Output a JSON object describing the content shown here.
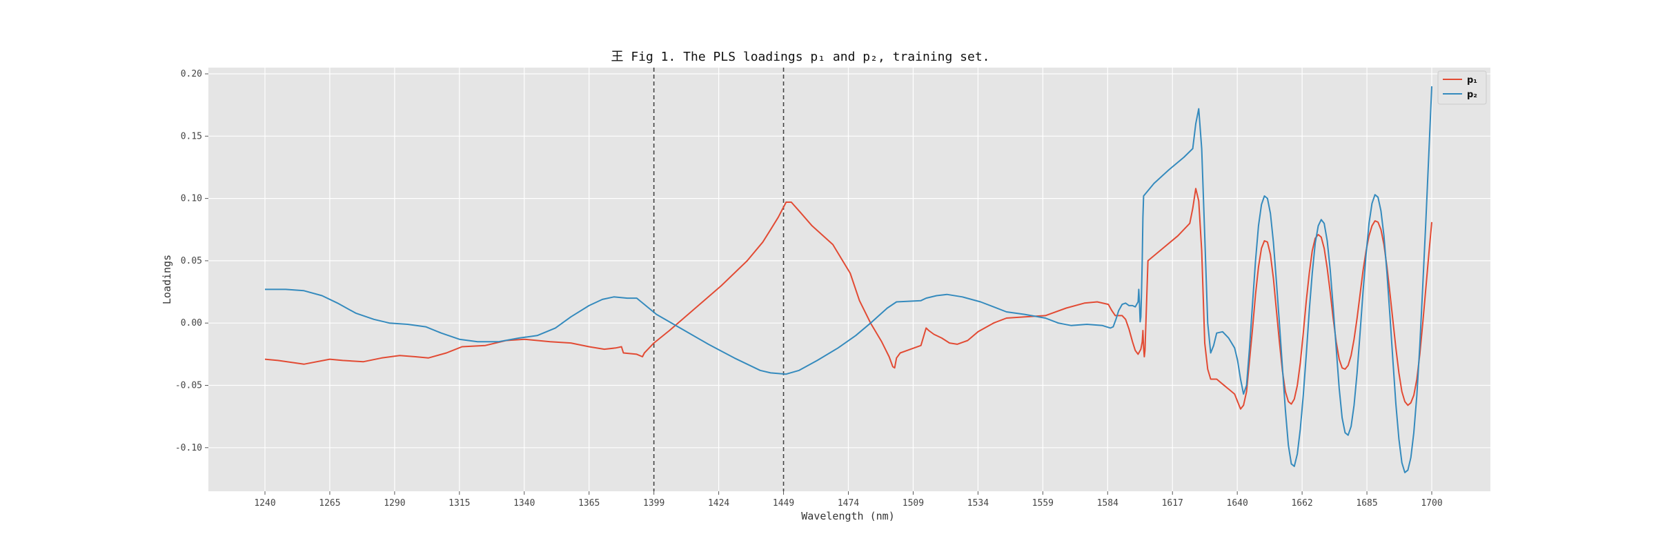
{
  "chart_data": {
    "type": "line",
    "title": "王 Fig 1. The PLS loadings p₁ and p₂, training set.",
    "xlabel": "Wavelength (nm)",
    "ylabel": "Loadings",
    "xlim": [
      1217,
      1719
    ],
    "ylim": [
      -0.135,
      0.205
    ],
    "grid": true,
    "legend_position": "top-right",
    "xticks": [
      1240,
      1265,
      1290,
      1315,
      1340,
      1365,
      1399,
      1424,
      1449,
      1474,
      1509,
      1534,
      1559,
      1584,
      1617,
      1640,
      1662,
      1685,
      1700
    ],
    "yticks": [
      -0.1,
      -0.05,
      0.0,
      0.05,
      0.1,
      0.15,
      0.2
    ],
    "ytick_labels": [
      "-0.10",
      "-0.05",
      "0.00",
      "0.05",
      "0.10",
      "0.15",
      "0.20"
    ],
    "vlines": [
      1399,
      1449
    ],
    "series": [
      {
        "name": "p₁",
        "color": "#e24a33",
        "points": [
          [
            1240,
            -0.029
          ],
          [
            1245,
            -0.03
          ],
          [
            1255,
            -0.033
          ],
          [
            1265,
            -0.029
          ],
          [
            1270,
            -0.03
          ],
          [
            1278,
            -0.031
          ],
          [
            1285,
            -0.028
          ],
          [
            1292,
            -0.026
          ],
          [
            1298,
            -0.027
          ],
          [
            1303,
            -0.028
          ],
          [
            1310,
            -0.024
          ],
          [
            1316,
            -0.019
          ],
          [
            1325,
            -0.018
          ],
          [
            1333,
            -0.014
          ],
          [
            1340,
            -0.013
          ],
          [
            1350,
            -0.015
          ],
          [
            1358,
            -0.016
          ],
          [
            1365,
            -0.019
          ],
          [
            1373,
            -0.021
          ],
          [
            1379,
            -0.02
          ],
          [
            1382,
            -0.019
          ],
          [
            1383,
            -0.024
          ],
          [
            1390,
            -0.025
          ],
          [
            1393,
            -0.027
          ],
          [
            1394,
            -0.024
          ],
          [
            1399,
            -0.016
          ],
          [
            1405,
            -0.006
          ],
          [
            1415,
            0.012
          ],
          [
            1425,
            0.03
          ],
          [
            1435,
            0.05
          ],
          [
            1441,
            0.065
          ],
          [
            1444,
            0.075
          ],
          [
            1447,
            0.085
          ],
          [
            1450,
            0.097
          ],
          [
            1452,
            0.097
          ],
          [
            1455,
            0.09
          ],
          [
            1460,
            0.078
          ],
          [
            1468,
            0.063
          ],
          [
            1475,
            0.04
          ],
          [
            1480,
            0.018
          ],
          [
            1486,
            0.0
          ],
          [
            1492,
            -0.015
          ],
          [
            1496,
            -0.027
          ],
          [
            1498,
            -0.035
          ],
          [
            1499,
            -0.036
          ],
          [
            1500,
            -0.028
          ],
          [
            1502,
            -0.024
          ],
          [
            1512,
            -0.018
          ],
          [
            1514,
            -0.004
          ],
          [
            1515,
            -0.006
          ],
          [
            1517,
            -0.009
          ],
          [
            1520,
            -0.012
          ],
          [
            1523,
            -0.016
          ],
          [
            1526,
            -0.017
          ],
          [
            1530,
            -0.014
          ],
          [
            1534,
            -0.007
          ],
          [
            1540,
            0.0
          ],
          [
            1545,
            0.004
          ],
          [
            1552,
            0.005
          ],
          [
            1560,
            0.006
          ],
          [
            1568,
            0.012
          ],
          [
            1575,
            0.016
          ],
          [
            1580,
            0.017
          ],
          [
            1585,
            0.015
          ],
          [
            1590,
            0.01
          ],
          [
            1595,
            0.006
          ],
          [
            1605,
            0.006
          ],
          [
            1610,
            0.003
          ],
          [
            1615,
            -0.005
          ],
          [
            1620,
            -0.015
          ],
          [
            1624,
            -0.022
          ],
          [
            1628,
            -0.025
          ],
          [
            1632,
            -0.021
          ],
          [
            1634,
            -0.015
          ],
          [
            1635,
            -0.006
          ],
          [
            1636,
            -0.02
          ],
          [
            1637,
            -0.027
          ],
          [
            1638,
            -0.022
          ],
          [
            1639,
            0.05
          ],
          [
            1644,
            0.06
          ],
          [
            1649,
            0.07
          ],
          [
            1653,
            0.08
          ],
          [
            1654,
            0.092
          ],
          [
            1655,
            0.108
          ],
          [
            1656,
            0.098
          ],
          [
            1657,
            0.058
          ],
          [
            1658,
            -0.016
          ],
          [
            1659,
            -0.037
          ],
          [
            1660,
            -0.045
          ],
          [
            1662,
            -0.045
          ],
          [
            1664,
            -0.049
          ],
          [
            1666,
            -0.053
          ],
          [
            1668,
            -0.057
          ],
          [
            1669,
            -0.063
          ],
          [
            1670,
            -0.069
          ],
          [
            1671,
            -0.066
          ],
          [
            1672,
            -0.055
          ],
          [
            1673,
            -0.03
          ],
          [
            1674,
            -0.005
          ],
          [
            1675,
            0.023
          ],
          [
            1676,
            0.045
          ],
          [
            1677,
            0.06
          ],
          [
            1678,
            0.066
          ],
          [
            1679,
            0.065
          ],
          [
            1680,
            0.055
          ],
          [
            1681,
            0.036
          ],
          [
            1682,
            0.01
          ],
          [
            1683,
            -0.015
          ],
          [
            1684,
            -0.038
          ],
          [
            1685,
            -0.055
          ],
          [
            1686,
            -0.063
          ],
          [
            1687,
            -0.065
          ],
          [
            1688,
            -0.061
          ],
          [
            1689,
            -0.05
          ],
          [
            1690,
            -0.032
          ],
          [
            1691,
            -0.008
          ],
          [
            1692,
            0.018
          ],
          [
            1693,
            0.04
          ],
          [
            1694,
            0.058
          ],
          [
            1695,
            0.068
          ],
          [
            1696,
            0.071
          ],
          [
            1697,
            0.069
          ],
          [
            1698,
            0.06
          ],
          [
            1699,
            0.044
          ],
          [
            1700,
            0.025
          ],
          [
            1701,
            0.004
          ],
          [
            1702,
            -0.015
          ],
          [
            1703,
            -0.029
          ],
          [
            1704,
            -0.036
          ],
          [
            1705,
            -0.037
          ],
          [
            1706,
            -0.034
          ],
          [
            1707,
            -0.026
          ],
          [
            1708,
            -0.013
          ],
          [
            1709,
            0.004
          ],
          [
            1710,
            0.023
          ],
          [
            1711,
            0.042
          ],
          [
            1712,
            0.058
          ],
          [
            1713,
            0.07
          ],
          [
            1714,
            0.078
          ],
          [
            1715,
            0.082
          ],
          [
            1716,
            0.081
          ],
          [
            1717,
            0.075
          ],
          [
            1718,
            0.063
          ],
          [
            1719,
            0.045
          ],
          [
            1720,
            0.024
          ],
          [
            1721,
            0.002
          ],
          [
            1722,
            -0.02
          ],
          [
            1723,
            -0.04
          ],
          [
            1724,
            -0.055
          ],
          [
            1725,
            -0.063
          ],
          [
            1726,
            -0.066
          ],
          [
            1727,
            -0.064
          ],
          [
            1728,
            -0.058
          ],
          [
            1729,
            -0.045
          ],
          [
            1730,
            -0.025
          ],
          [
            1731,
            0.0
          ],
          [
            1732,
            0.027
          ],
          [
            1733,
            0.055
          ],
          [
            1734,
            0.081
          ]
        ]
      },
      {
        "name": "p₂",
        "color": "#348abd",
        "points": [
          [
            1240,
            0.027
          ],
          [
            1248,
            0.027
          ],
          [
            1255,
            0.026
          ],
          [
            1262,
            0.022
          ],
          [
            1268,
            0.016
          ],
          [
            1275,
            0.008
          ],
          [
            1282,
            0.003
          ],
          [
            1288,
            0.0
          ],
          [
            1295,
            -0.001
          ],
          [
            1302,
            -0.003
          ],
          [
            1308,
            -0.008
          ],
          [
            1315,
            -0.013
          ],
          [
            1322,
            -0.015
          ],
          [
            1330,
            -0.015
          ],
          [
            1338,
            -0.012
          ],
          [
            1345,
            -0.01
          ],
          [
            1352,
            -0.004
          ],
          [
            1358,
            0.005
          ],
          [
            1365,
            0.014
          ],
          [
            1372,
            0.019
          ],
          [
            1378,
            0.021
          ],
          [
            1385,
            0.02
          ],
          [
            1390,
            0.02
          ],
          [
            1400,
            0.007
          ],
          [
            1410,
            -0.005
          ],
          [
            1420,
            -0.017
          ],
          [
            1430,
            -0.028
          ],
          [
            1440,
            -0.038
          ],
          [
            1444,
            -0.04
          ],
          [
            1450,
            -0.041
          ],
          [
            1455,
            -0.038
          ],
          [
            1462,
            -0.03
          ],
          [
            1470,
            -0.02
          ],
          [
            1478,
            -0.01
          ],
          [
            1486,
            0.0
          ],
          [
            1495,
            0.012
          ],
          [
            1500,
            0.017
          ],
          [
            1512,
            0.018
          ],
          [
            1514,
            0.02
          ],
          [
            1518,
            0.022
          ],
          [
            1522,
            0.023
          ],
          [
            1528,
            0.021
          ],
          [
            1535,
            0.017
          ],
          [
            1540,
            0.013
          ],
          [
            1545,
            0.009
          ],
          [
            1552,
            0.007
          ],
          [
            1560,
            0.004
          ],
          [
            1565,
            0.0
          ],
          [
            1570,
            -0.002
          ],
          [
            1576,
            -0.001
          ],
          [
            1582,
            -0.002
          ],
          [
            1588,
            -0.004
          ],
          [
            1592,
            -0.003
          ],
          [
            1596,
            0.003
          ],
          [
            1600,
            0.01
          ],
          [
            1605,
            0.015
          ],
          [
            1610,
            0.016
          ],
          [
            1615,
            0.014
          ],
          [
            1620,
            0.014
          ],
          [
            1624,
            0.013
          ],
          [
            1628,
            0.017
          ],
          [
            1629,
            0.027
          ],
          [
            1630,
            0.016
          ],
          [
            1631,
            0.001
          ],
          [
            1632,
            0.005
          ],
          [
            1633,
            0.025
          ],
          [
            1634,
            0.05
          ],
          [
            1635,
            0.085
          ],
          [
            1636,
            0.102
          ],
          [
            1641,
            0.112
          ],
          [
            1646,
            0.123
          ],
          [
            1651,
            0.133
          ],
          [
            1654,
            0.14
          ],
          [
            1655,
            0.16
          ],
          [
            1656,
            0.172
          ],
          [
            1657,
            0.14
          ],
          [
            1658,
            0.07
          ],
          [
            1659,
            0.0
          ],
          [
            1660,
            -0.024
          ],
          [
            1661,
            -0.018
          ],
          [
            1662,
            -0.008
          ],
          [
            1664,
            -0.007
          ],
          [
            1666,
            -0.012
          ],
          [
            1668,
            -0.02
          ],
          [
            1669,
            -0.03
          ],
          [
            1670,
            -0.045
          ],
          [
            1671,
            -0.057
          ],
          [
            1672,
            -0.05
          ],
          [
            1673,
            -0.02
          ],
          [
            1674,
            0.015
          ],
          [
            1675,
            0.05
          ],
          [
            1676,
            0.078
          ],
          [
            1677,
            0.095
          ],
          [
            1678,
            0.102
          ],
          [
            1679,
            0.1
          ],
          [
            1680,
            0.088
          ],
          [
            1681,
            0.065
          ],
          [
            1682,
            0.033
          ],
          [
            1683,
            0.0
          ],
          [
            1684,
            -0.035
          ],
          [
            1685,
            -0.07
          ],
          [
            1686,
            -0.098
          ],
          [
            1687,
            -0.113
          ],
          [
            1688,
            -0.115
          ],
          [
            1689,
            -0.105
          ],
          [
            1690,
            -0.085
          ],
          [
            1691,
            -0.058
          ],
          [
            1692,
            -0.025
          ],
          [
            1693,
            0.01
          ],
          [
            1694,
            0.04
          ],
          [
            1695,
            0.064
          ],
          [
            1696,
            0.078
          ],
          [
            1697,
            0.083
          ],
          [
            1698,
            0.08
          ],
          [
            1699,
            0.066
          ],
          [
            1700,
            0.043
          ],
          [
            1701,
            0.013
          ],
          [
            1702,
            -0.02
          ],
          [
            1703,
            -0.052
          ],
          [
            1704,
            -0.076
          ],
          [
            1705,
            -0.088
          ],
          [
            1706,
            -0.09
          ],
          [
            1707,
            -0.083
          ],
          [
            1708,
            -0.066
          ],
          [
            1709,
            -0.04
          ],
          [
            1710,
            -0.008
          ],
          [
            1711,
            0.025
          ],
          [
            1712,
            0.055
          ],
          [
            1713,
            0.08
          ],
          [
            1714,
            0.096
          ],
          [
            1715,
            0.103
          ],
          [
            1716,
            0.101
          ],
          [
            1717,
            0.09
          ],
          [
            1718,
            0.07
          ],
          [
            1719,
            0.04
          ],
          [
            1720,
            0.006
          ],
          [
            1721,
            -0.03
          ],
          [
            1722,
            -0.065
          ],
          [
            1723,
            -0.093
          ],
          [
            1724,
            -0.112
          ],
          [
            1725,
            -0.12
          ],
          [
            1726,
            -0.118
          ],
          [
            1727,
            -0.108
          ],
          [
            1728,
            -0.088
          ],
          [
            1729,
            -0.058
          ],
          [
            1730,
            -0.018
          ],
          [
            1731,
            0.03
          ],
          [
            1732,
            0.08
          ],
          [
            1733,
            0.135
          ],
          [
            1734,
            0.19
          ]
        ]
      }
    ]
  }
}
